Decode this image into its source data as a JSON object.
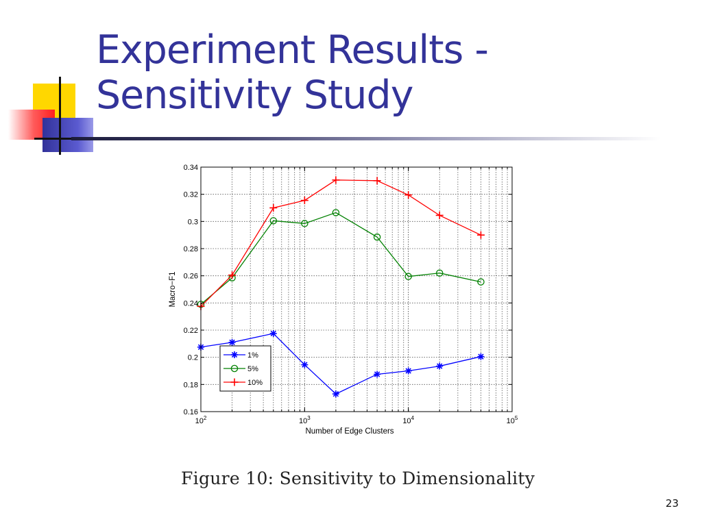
{
  "slide": {
    "title_line1": "Experiment Results -",
    "title_line2": "Sensitivity Study",
    "caption": "Figure 10: Sensitivity to Dimensionality",
    "page_number": "23"
  },
  "colors": {
    "title": "#333399",
    "series_1pct": "#0000ff",
    "series_5pct": "#008000",
    "series_10pct": "#ff0000"
  },
  "chart_data": {
    "type": "line",
    "xlabel": "Number of Edge Clusters",
    "ylabel": "Macro−F1",
    "x_scale": "log",
    "xlim": [
      100,
      100000
    ],
    "ylim": [
      0.16,
      0.34
    ],
    "grid": true,
    "legend_position": "lower-left",
    "x": [
      100,
      200,
      500,
      1000,
      2000,
      5000,
      10000,
      20000,
      50000
    ],
    "x_ticks": [
      {
        "base": "10",
        "exp": "2"
      },
      {
        "base": "10",
        "exp": "3"
      },
      {
        "base": "10",
        "exp": "4"
      },
      {
        "base": "10",
        "exp": "5"
      }
    ],
    "y_ticks": [
      "0.16",
      "0.18",
      "0.2",
      "0.22",
      "0.24",
      "0.26",
      "0.28",
      "0.3",
      "0.32",
      "0.34"
    ],
    "series": [
      {
        "name": "1%",
        "color": "#0000ff",
        "marker": "star",
        "values": [
          0.2075,
          0.211,
          0.2175,
          0.1945,
          0.173,
          0.1875,
          0.19,
          0.1935,
          0.2005
        ]
      },
      {
        "name": "5%",
        "color": "#008000",
        "marker": "circle",
        "values": [
          0.239,
          0.2585,
          0.3005,
          0.2985,
          0.3065,
          0.2885,
          0.2595,
          0.262,
          0.2555
        ]
      },
      {
        "name": "10%",
        "color": "#ff0000",
        "marker": "plus",
        "values": [
          0.2375,
          0.2605,
          0.31,
          0.3155,
          0.3305,
          0.33,
          0.3195,
          0.3045,
          0.29
        ]
      }
    ]
  }
}
